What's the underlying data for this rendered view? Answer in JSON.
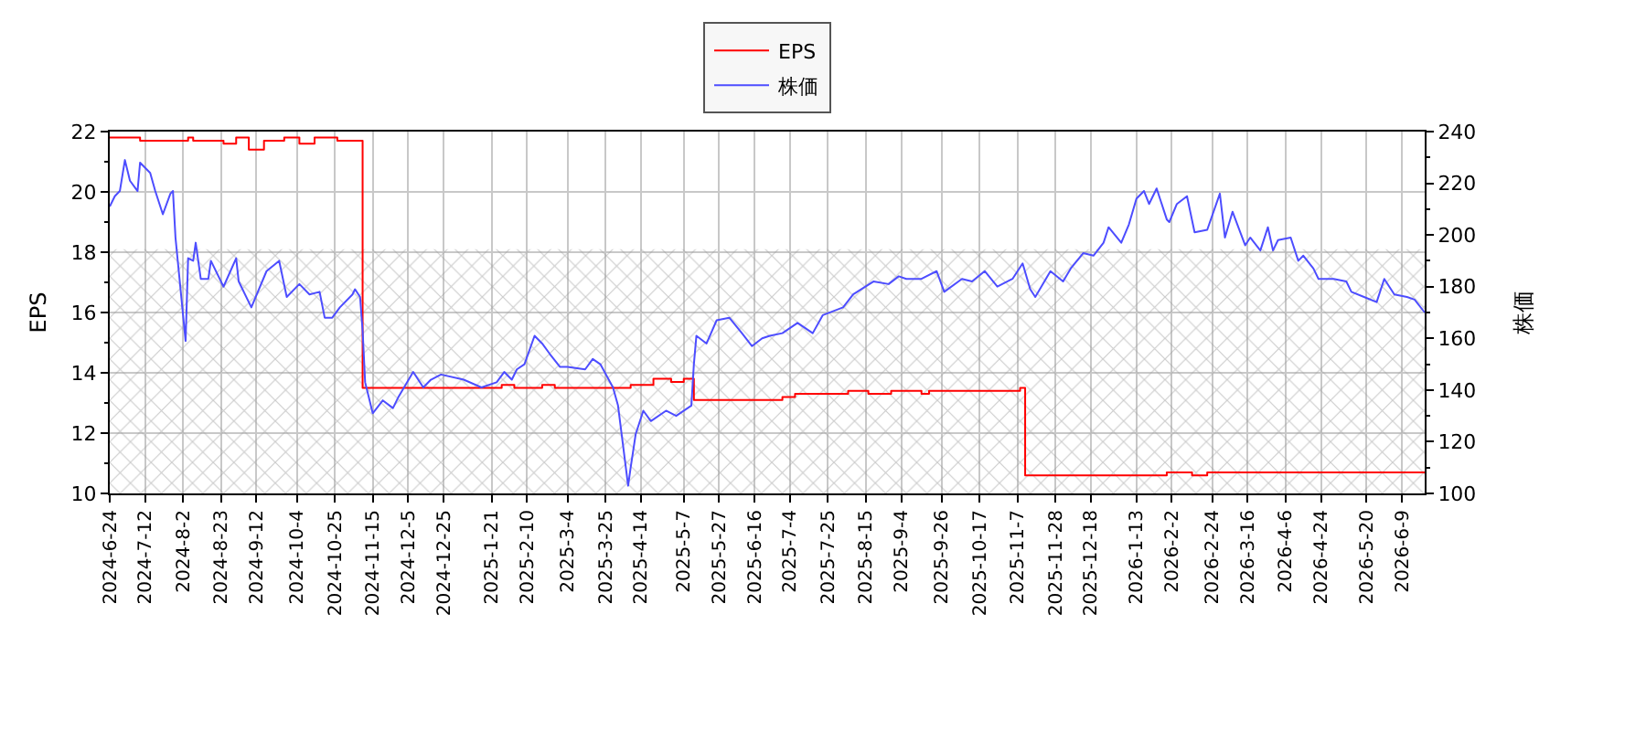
{
  "chart_data": {
    "type": "line",
    "ylabel": "EPS",
    "y2label": "株価",
    "xlim": [
      "2024-06-24",
      "2026-06-22"
    ],
    "xticks": [
      {
        "value": "2024-06-24",
        "label": "2024-6-24"
      },
      {
        "value": "2024-07-12",
        "label": "2024-7-12"
      },
      {
        "value": "2024-08-02",
        "label": "2024-8-2"
      },
      {
        "value": "2024-08-23",
        "label": "2024-8-23"
      },
      {
        "value": "2024-09-12",
        "label": "2024-9-12"
      },
      {
        "value": "2024-10-04",
        "label": "2024-10-4"
      },
      {
        "value": "2024-10-25",
        "label": "2024-10-25"
      },
      {
        "value": "2024-11-15",
        "label": "2024-11-15"
      },
      {
        "value": "2024-12-05",
        "label": "2024-12-5"
      },
      {
        "value": "2024-12-25",
        "label": "2024-12-25"
      },
      {
        "value": "2025-01-21",
        "label": "2025-1-21"
      },
      {
        "value": "2025-02-10",
        "label": "2025-2-10"
      },
      {
        "value": "2025-03-04",
        "label": "2025-3-4"
      },
      {
        "value": "2025-03-25",
        "label": "2025-3-25"
      },
      {
        "value": "2025-04-14",
        "label": "2025-4-14"
      },
      {
        "value": "2025-05-07",
        "label": "2025-5-7"
      },
      {
        "value": "2025-05-27",
        "label": "2025-5-27"
      },
      {
        "value": "2025-06-16",
        "label": "2025-6-16"
      },
      {
        "value": "2025-07-04",
        "label": "2025-7-4"
      },
      {
        "value": "2025-07-25",
        "label": "2025-7-25"
      },
      {
        "value": "2025-08-15",
        "label": "2025-8-15"
      },
      {
        "value": "2025-09-04",
        "label": "2025-9-4"
      },
      {
        "value": "2025-09-26",
        "label": "2025-9-26"
      },
      {
        "value": "2025-10-17",
        "label": "2025-10-17"
      },
      {
        "value": "2025-11-07",
        "label": "2025-11-7"
      },
      {
        "value": "2025-11-28",
        "label": "2025-11-28"
      },
      {
        "value": "2025-12-18",
        "label": "2025-12-18"
      },
      {
        "value": "2026-01-13",
        "label": "2026-1-13"
      },
      {
        "value": "2026-02-02",
        "label": "2026-2-2"
      },
      {
        "value": "2026-02-24",
        "label": "2026-2-24"
      },
      {
        "value": "2026-03-16",
        "label": "2026-3-16"
      },
      {
        "value": "2026-04-06",
        "label": "2026-4-6"
      },
      {
        "value": "2026-04-24",
        "label": "2026-4-24"
      },
      {
        "value": "2026-05-20",
        "label": "2026-5-20"
      },
      {
        "value": "2026-06-09",
        "label": "2026-6-9"
      }
    ],
    "ylim": [
      10,
      22
    ],
    "yticks": [
      10,
      {
        "value": 11,
        "label": null
      },
      12,
      {
        "value": 13,
        "label": null
      },
      14,
      {
        "value": 15,
        "label": null
      },
      16,
      {
        "value": 17,
        "label": null
      },
      18,
      {
        "value": 19,
        "label": null
      },
      20,
      {
        "value": 21,
        "label": null
      },
      22
    ],
    "y2lim": [
      100,
      240
    ],
    "y2ticks": [
      100,
      {
        "value": 110,
        "label": null
      },
      120,
      {
        "value": 130,
        "label": null
      },
      140,
      {
        "value": 150,
        "label": null
      },
      160,
      {
        "value": 170,
        "label": null
      },
      180,
      {
        "value": 190,
        "label": null
      },
      200,
      {
        "value": 210,
        "label": null
      },
      220,
      {
        "value": 230,
        "label": null
      },
      240
    ],
    "grid": true,
    "legend": "top",
    "bands": [
      {
        "axis": "y",
        "from": 10,
        "to": 18.1,
        "color": "#999999"
      }
    ],
    "series": [
      {
        "name": "EPS",
        "type": "step",
        "color": "#ff0000",
        "x": [
          "2024-06-24",
          "2024-07-10",
          "2024-08-06",
          "2024-08-08",
          "2024-08-26",
          "2024-09-02",
          "2024-09-09",
          "2024-09-17",
          "2024-09-27",
          "2024-10-07",
          "2024-10-15",
          "2024-10-28",
          "2024-11-11",
          "2025-01-27",
          "2025-02-03",
          "2025-02-18",
          "2025-02-25",
          "2025-04-08",
          "2025-04-21",
          "2025-04-30",
          "2025-05-07",
          "2025-05-13",
          "2025-07-01",
          "2025-07-08",
          "2025-08-06",
          "2025-08-18",
          "2025-08-29",
          "2025-09-16",
          "2025-09-19",
          "2025-11-10",
          "2025-11-12",
          "2026-01-29",
          "2026-02-12",
          "2026-02-20",
          "2026-06-22"
        ],
        "values": [
          21.8,
          21.7,
          21.8,
          21.7,
          21.6,
          21.8,
          21.4,
          21.7,
          21.8,
          21.6,
          21.8,
          21.7,
          13.5,
          13.6,
          13.5,
          13.6,
          13.5,
          13.6,
          13.8,
          13.7,
          13.8,
          13.1,
          13.2,
          13.3,
          13.4,
          13.3,
          13.4,
          13.3,
          13.4,
          13.5,
          10.6,
          10.7,
          10.6,
          10.7,
          10.7
        ]
      },
      {
        "name": "株価",
        "axis": "y2",
        "color": "#4d4dff",
        "x": [
          "2024-06-24",
          "2024-06-26",
          "2024-06-28",
          "2024-07-02",
          "2024-07-04",
          "2024-07-09",
          "2024-07-10",
          "2024-07-16",
          "2024-07-18",
          "2024-07-23",
          "2024-07-26",
          "2024-07-29",
          "2024-07-30",
          "2024-08-05",
          "2024-08-06",
          "2024-08-08",
          "2024-08-09",
          "2024-08-13",
          "2024-08-16",
          "2024-08-19",
          "2024-08-26",
          "2024-09-02",
          "2024-09-03",
          "2024-09-10",
          "2024-09-18",
          "2024-09-25",
          "2024-09-30",
          "2024-10-07",
          "2024-10-11",
          "2024-10-17",
          "2024-10-21",
          "2024-10-24",
          "2024-10-29",
          "2024-11-05",
          "2024-11-06",
          "2024-11-08",
          "2024-11-11",
          "2024-11-12",
          "2024-11-15",
          "2024-11-21",
          "2024-11-27",
          "2024-11-29",
          "2024-12-09",
          "2024-12-13",
          "2024-12-18",
          "2024-12-24",
          "2025-01-06",
          "2025-01-15",
          "2025-01-23",
          "2025-01-28",
          "2025-01-31",
          "2025-02-04",
          "2025-02-07",
          "2025-02-13",
          "2025-02-18",
          "2025-02-21",
          "2025-02-27",
          "2025-03-04",
          "2025-03-13",
          "2025-03-18",
          "2025-03-21",
          "2025-03-28",
          "2025-04-01",
          "2025-04-07",
          "2025-04-08",
          "2025-04-10",
          "2025-04-15",
          "2025-04-18",
          "2025-04-28",
          "2025-05-02",
          "2025-05-12",
          "2025-05-13",
          "2025-05-14",
          "2025-05-20",
          "2025-05-26",
          "2025-06-02",
          "2025-06-09",
          "2025-06-13",
          "2025-06-19",
          "2025-06-24",
          "2025-07-01",
          "2025-07-09",
          "2025-07-17",
          "2025-07-23",
          "2025-08-04",
          "2025-08-08",
          "2025-08-20",
          "2025-08-28",
          "2025-09-03",
          "2025-09-08",
          "2025-09-16",
          "2025-09-24",
          "2025-09-29",
          "2025-10-08",
          "2025-10-14",
          "2025-10-21",
          "2025-10-28",
          "2025-11-05",
          "2025-11-11",
          "2025-11-14",
          "2025-11-18",
          "2025-11-26",
          "2025-12-03",
          "2025-12-08",
          "2025-12-15",
          "2025-12-19",
          "2025-12-25",
          "2025-12-29",
          "2026-01-05",
          "2026-01-08",
          "2026-01-13",
          "2026-01-16",
          "2026-01-20",
          "2026-01-23",
          "2026-01-29",
          "2026-01-30",
          "2026-02-04",
          "2026-02-10",
          "2026-02-13",
          "2026-02-20",
          "2026-02-27",
          "2026-03-03",
          "2026-03-06",
          "2026-03-13",
          "2026-03-17",
          "2026-03-23",
          "2026-03-26",
          "2026-03-30",
          "2026-04-01",
          "2026-04-08",
          "2026-04-13",
          "2026-04-15",
          "2026-04-21",
          "2026-04-23",
          "2026-05-01",
          "2026-05-08",
          "2026-05-12",
          "2026-05-19",
          "2026-05-26",
          "2026-05-29",
          "2026-06-04",
          "2026-06-11",
          "2026-06-16",
          "2026-06-22"
        ],
        "values": [
          211,
          215,
          217,
          229,
          221,
          217,
          228,
          224,
          217,
          208,
          216,
          217,
          199,
          159,
          191,
          190,
          197,
          183,
          183,
          190,
          180,
          191,
          182,
          172,
          186,
          190,
          176,
          181,
          177,
          178,
          168,
          168,
          172,
          177,
          179,
          176,
          163,
          143,
          131,
          136,
          133,
          137,
          147,
          141,
          144,
          146,
          144,
          141,
          143,
          147,
          144,
          148,
          150,
          161,
          158,
          154,
          149,
          149,
          148,
          152,
          150,
          141,
          134,
          103,
          110,
          123,
          132,
          128,
          132,
          130,
          134,
          150,
          161,
          158,
          167,
          168,
          162,
          157,
          160,
          161,
          162,
          166,
          162,
          169,
          172,
          177,
          182,
          181,
          184,
          183,
          183,
          186,
          178,
          183,
          182,
          186,
          180,
          183,
          189,
          179,
          176,
          186,
          182,
          187,
          193,
          192,
          197,
          203,
          197,
          204,
          214,
          217,
          212,
          218,
          206,
          205,
          212,
          215,
          201,
          202,
          216,
          199,
          209,
          196,
          199,
          194,
          203,
          194,
          198,
          199,
          190,
          192,
          187,
          183,
          183,
          182,
          178,
          176,
          174,
          183,
          177,
          176,
          175,
          170
        ]
      }
    ]
  }
}
